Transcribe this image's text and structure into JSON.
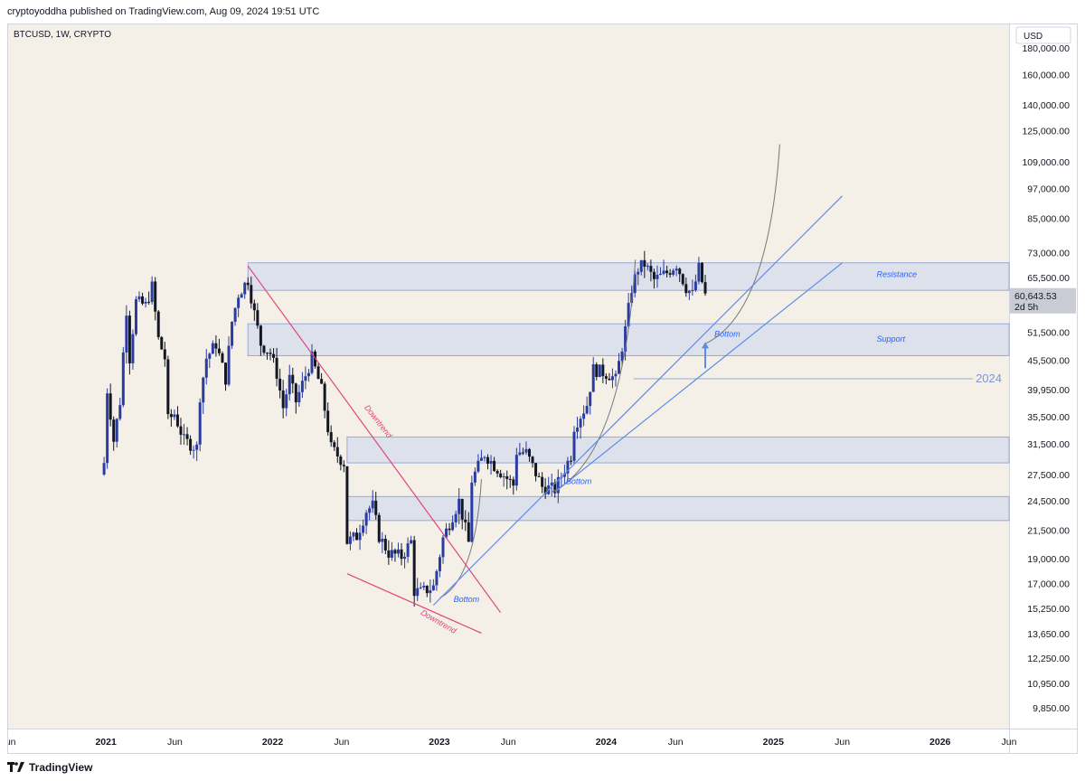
{
  "header": {
    "attribution": "cryptoyoddha published on TradingView.com, Aug 09, 2024 19:51 UTC"
  },
  "footer": {
    "brand": "TradingView"
  },
  "icons": {
    "brand_logo": "tradingview-logo-icon"
  },
  "colors": {
    "background": "#f4f0e8",
    "up_candle": "#2a3ca0",
    "down_candle": "#131722",
    "zone_fill": "#dde1ec",
    "zone_border": "#9aa8d6",
    "downtrend": "#e0457a",
    "uptrend": "#5b8de8",
    "curve": "#777777",
    "label_blue": "#2962ff"
  },
  "chart_data": {
    "type": "candlestick",
    "symbol": "BTCUSD, 1W, CRYPTO",
    "currency": "USD",
    "y_scale": "log",
    "ylim": [
      9000,
      200000
    ],
    "y_ticks": [
      180000,
      160000,
      140000,
      125000,
      109000,
      97000,
      85000,
      73000,
      65500,
      51500,
      45500,
      39950,
      35500,
      31500,
      27500,
      24500,
      21500,
      19000,
      17000,
      15250,
      13650,
      12250,
      10950,
      9850
    ],
    "y_tick_labels": [
      "180,000.00",
      "160,000.00",
      "140,000.00",
      "125,000.00",
      "109,000.00",
      "97,000.00",
      "85,000.00",
      "73,000.00",
      "65,500.00",
      "51,500.00",
      "45,500.00",
      "39,950.00",
      "35,500.00",
      "31,500.00",
      "27,500.00",
      "24,500.00",
      "21,500.00",
      "19,000.00",
      "17,000.00",
      "15,250.00",
      "13,650.00",
      "12,250.00",
      "10,950.00",
      "9,850.00"
    ],
    "x_range": [
      "2020-06-01",
      "2026-06-01"
    ],
    "x_ticks": [
      {
        "date": "2020-06-01",
        "label": "Jun",
        "bold": false
      },
      {
        "date": "2021-01-01",
        "label": "2021",
        "bold": true
      },
      {
        "date": "2021-06-01",
        "label": "Jun",
        "bold": false
      },
      {
        "date": "2022-01-01",
        "label": "2022",
        "bold": true
      },
      {
        "date": "2022-06-01",
        "label": "Jun",
        "bold": false
      },
      {
        "date": "2023-01-01",
        "label": "2023",
        "bold": true
      },
      {
        "date": "2023-06-01",
        "label": "Jun",
        "bold": false
      },
      {
        "date": "2024-01-01",
        "label": "2024",
        "bold": true
      },
      {
        "date": "2024-06-01",
        "label": "Jun",
        "bold": false
      },
      {
        "date": "2025-01-01",
        "label": "2025",
        "bold": true
      },
      {
        "date": "2025-06-01",
        "label": "Jun",
        "bold": false
      },
      {
        "date": "2026-01-01",
        "label": "2026",
        "bold": true
      },
      {
        "date": "2026-06-01",
        "label": "Jun",
        "bold": false
      }
    ],
    "price_path_weekly_approx": [
      [
        "2020-12-28",
        29000
      ],
      [
        "2021-01-04",
        40000
      ],
      [
        "2021-01-11",
        36000
      ],
      [
        "2021-01-18",
        32000
      ],
      [
        "2021-02-01",
        38000
      ],
      [
        "2021-02-08",
        47000
      ],
      [
        "2021-02-15",
        57000
      ],
      [
        "2021-02-22",
        46000
      ],
      [
        "2021-03-08",
        59000
      ],
      [
        "2021-03-29",
        58000
      ],
      [
        "2021-04-12",
        63000
      ],
      [
        "2021-04-26",
        50000
      ],
      [
        "2021-05-10",
        46000
      ],
      [
        "2021-05-17",
        35000
      ],
      [
        "2021-05-31",
        36000
      ],
      [
        "2021-06-21",
        32000
      ],
      [
        "2021-07-19",
        31000
      ],
      [
        "2021-07-26",
        39000
      ],
      [
        "2021-08-09",
        46000
      ],
      [
        "2021-08-30",
        49000
      ],
      [
        "2021-09-20",
        42000
      ],
      [
        "2021-10-04",
        54000
      ],
      [
        "2021-10-18",
        61000
      ],
      [
        "2021-11-08",
        65000
      ],
      [
        "2021-11-22",
        56000
      ],
      [
        "2021-12-06",
        49000
      ],
      [
        "2021-12-27",
        47000
      ],
      [
        "2022-01-10",
        43000
      ],
      [
        "2022-01-24",
        37000
      ],
      [
        "2022-02-07",
        42000
      ],
      [
        "2022-02-21",
        38000
      ],
      [
        "2022-03-28",
        46000
      ],
      [
        "2022-04-18",
        40000
      ],
      [
        "2022-05-09",
        31000
      ],
      [
        "2022-06-06",
        29000
      ],
      [
        "2022-06-13",
        20500
      ],
      [
        "2022-07-04",
        21000
      ],
      [
        "2022-07-25",
        23500
      ],
      [
        "2022-08-08",
        24000
      ],
      [
        "2022-08-22",
        21000
      ],
      [
        "2022-09-12",
        19500
      ],
      [
        "2022-10-10",
        19200
      ],
      [
        "2022-10-31",
        20500
      ],
      [
        "2022-11-07",
        16500
      ],
      [
        "2022-11-21",
        16400
      ],
      [
        "2022-12-19",
        16800
      ],
      [
        "2023-01-09",
        20800
      ],
      [
        "2023-01-30",
        23000
      ],
      [
        "2023-02-13",
        24500
      ],
      [
        "2023-03-06",
        20400
      ],
      [
        "2023-03-13",
        26900
      ],
      [
        "2023-04-10",
        30200
      ],
      [
        "2023-05-01",
        28700
      ],
      [
        "2023-06-12",
        26300
      ],
      [
        "2023-06-19",
        30500
      ],
      [
        "2023-07-10",
        30300
      ],
      [
        "2023-08-14",
        26100
      ],
      [
        "2023-09-11",
        25800
      ],
      [
        "2023-10-16",
        30000
      ],
      [
        "2023-10-23",
        34100
      ],
      [
        "2023-11-20",
        37500
      ],
      [
        "2023-12-04",
        43800
      ],
      [
        "2024-01-08",
        42800
      ],
      [
        "2024-01-22",
        41800
      ],
      [
        "2024-02-12",
        52100
      ],
      [
        "2024-02-26",
        62500
      ],
      [
        "2024-03-11",
        68300
      ],
      [
        "2024-03-25",
        69600
      ],
      [
        "2024-04-15",
        64900
      ],
      [
        "2024-05-13",
        67000
      ],
      [
        "2024-06-03",
        69600
      ],
      [
        "2024-06-24",
        62800
      ],
      [
        "2024-07-08",
        60800
      ],
      [
        "2024-07-22",
        68300
      ],
      [
        "2024-08-05",
        60643.53
      ]
    ],
    "current_price_label": "60,643.53",
    "countdown_label": "2d 5h",
    "zones": [
      {
        "name": "Resistance",
        "low": 62000,
        "high": 70000
      },
      {
        "name": "Support",
        "low": 46500,
        "high": 53500
      },
      {
        "name": "",
        "low": 29000,
        "high": 32500
      },
      {
        "name": "",
        "low": 22500,
        "high": 25000
      }
    ],
    "trendlines": [
      {
        "kind": "downtrend",
        "from": [
          "2021-11-08",
          69000
        ],
        "to": [
          "2023-05-15",
          15000
        ]
      },
      {
        "kind": "downtrend",
        "from": [
          "2022-06-13",
          17800
        ],
        "to": [
          "2023-04-03",
          13700
        ]
      },
      {
        "kind": "uptrend",
        "from": [
          "2022-12-19",
          15500
        ],
        "to": [
          "2025-06-01",
          94000
        ]
      },
      {
        "kind": "uptrend",
        "from": [
          "2023-09-11",
          25500
        ],
        "to": [
          "2025-06-01",
          70000
        ]
      }
    ],
    "horizontal_lines": [
      {
        "price": 42000,
        "from": "2024-03-01",
        "label": "2024"
      }
    ],
    "annotations": [
      {
        "text": "Resistance",
        "x": "2025-08-15",
        "y": 65800
      },
      {
        "text": "Support",
        "x": "2025-08-15",
        "y": 49500
      },
      {
        "text": "Bottom",
        "x": "2024-08-25",
        "y": 50500
      },
      {
        "text": "Bottom",
        "x": "2023-10-05",
        "y": 26400
      },
      {
        "text": "Bottom",
        "x": "2023-02-01",
        "y": 15700
      },
      {
        "text": "Downtrend",
        "x": "2022-07-20",
        "y": 37000
      },
      {
        "text": "Downtrend",
        "x": "2022-11-20",
        "y": 14900
      }
    ],
    "arrow": {
      "x": "2024-08-05",
      "from_price": 44000,
      "to_price": 49000
    },
    "parabolic_curves": [
      {
        "from": [
          "2023-01-02",
          16000
        ],
        "to": [
          "2023-04-03",
          27000
        ]
      },
      {
        "from": [
          "2023-09-04",
          25500
        ],
        "to": [
          "2024-03-05",
          71000
        ]
      },
      {
        "from": [
          "2024-08-05",
          49000
        ],
        "to": [
          "2025-01-15",
          118000
        ]
      }
    ]
  }
}
